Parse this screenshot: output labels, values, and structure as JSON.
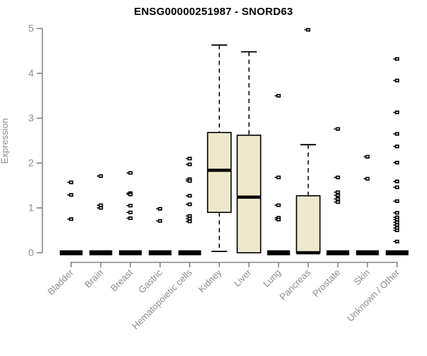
{
  "title": "ENSG00000251987 - SNORD63",
  "ylabel": "Expression",
  "chart_data": {
    "type": "boxplot",
    "title": "ENSG00000251987 - SNORD63",
    "xlabel": "",
    "ylabel": "Expression",
    "ylim": [
      0,
      5
    ],
    "yticks": [
      0,
      1,
      2,
      3,
      4,
      5
    ],
    "grid": false,
    "legend": "none",
    "categories": [
      "Bladder",
      "Brain",
      "Breast",
      "Gastric",
      "Hematopoietic cells",
      "Kidney",
      "Liver",
      "Lung",
      "Pancreas",
      "Prostate",
      "Skin",
      "Unknown / Other"
    ],
    "boxes": [
      {
        "category": "Bladder",
        "q1": 0,
        "median": 0,
        "q3": 0,
        "whisker_low": 0,
        "whisker_high": 0,
        "outliers": [
          1.57,
          1.29,
          0.75
        ]
      },
      {
        "category": "Brain",
        "q1": 0,
        "median": 0,
        "q3": 0,
        "whisker_low": 0,
        "whisker_high": 0,
        "outliers": [
          1.71,
          1.06,
          1.0
        ]
      },
      {
        "category": "Breast",
        "q1": 0,
        "median": 0,
        "q3": 0,
        "whisker_low": 0,
        "whisker_high": 0,
        "outliers": [
          1.78,
          1.33,
          1.3,
          1.05,
          0.9,
          0.77
        ]
      },
      {
        "category": "Gastric",
        "q1": 0,
        "median": 0,
        "q3": 0,
        "whisker_low": 0,
        "whisker_high": 0,
        "outliers": [
          0.98,
          0.71
        ]
      },
      {
        "category": "Hematopoietic cells",
        "q1": 0,
        "median": 0,
        "q3": 0,
        "whisker_low": 0,
        "whisker_high": 0,
        "outliers": [
          2.1,
          1.97,
          1.64,
          1.6,
          1.27,
          1.08,
          0.82,
          0.76,
          0.7
        ]
      },
      {
        "category": "Kidney",
        "q1": 0.9,
        "median": 1.84,
        "q3": 2.68,
        "whisker_low": 0.03,
        "whisker_high": 4.63,
        "outliers": []
      },
      {
        "category": "Liver",
        "q1": 0.0,
        "median": 1.24,
        "q3": 2.62,
        "whisker_low": 0.0,
        "whisker_high": 4.48,
        "outliers": []
      },
      {
        "category": "Lung",
        "q1": 0,
        "median": 0,
        "q3": 0,
        "whisker_low": 0,
        "whisker_high": 0,
        "outliers": [
          3.5,
          1.68,
          1.06,
          0.78,
          0.74
        ]
      },
      {
        "category": "Pancreas",
        "q1": 0,
        "median": 0,
        "q3": 1.27,
        "whisker_low": 0,
        "whisker_high": 2.41,
        "outliers": [
          4.97
        ]
      },
      {
        "category": "Prostate",
        "q1": 0,
        "median": 0,
        "q3": 0,
        "whisker_low": 0,
        "whisker_high": 0,
        "outliers": [
          2.76,
          1.68,
          1.35,
          1.28,
          1.2,
          1.13
        ]
      },
      {
        "category": "Skin",
        "q1": 0,
        "median": 0,
        "q3": 0,
        "whisker_low": 0,
        "whisker_high": 0,
        "outliers": [
          2.14,
          1.65
        ]
      },
      {
        "category": "Unknown / Other",
        "q1": 0,
        "median": 0,
        "q3": 0,
        "whisker_low": 0,
        "whisker_high": 0,
        "outliers": [
          4.32,
          3.84,
          3.13,
          2.65,
          2.37,
          2.01,
          1.59,
          1.46,
          1.15,
          0.89,
          0.79,
          0.74,
          0.68,
          0.62,
          0.55,
          0.5,
          0.25
        ]
      }
    ],
    "colors": {
      "background": "#FFFFFF",
      "box_fill": "#EEE8CD",
      "box_stroke": "#000000",
      "median": "#000000",
      "whisker": "#000000",
      "outlier": "#000000",
      "axis": "#848484",
      "tick_label": "#8C8C8C",
      "title": "#000000"
    }
  }
}
